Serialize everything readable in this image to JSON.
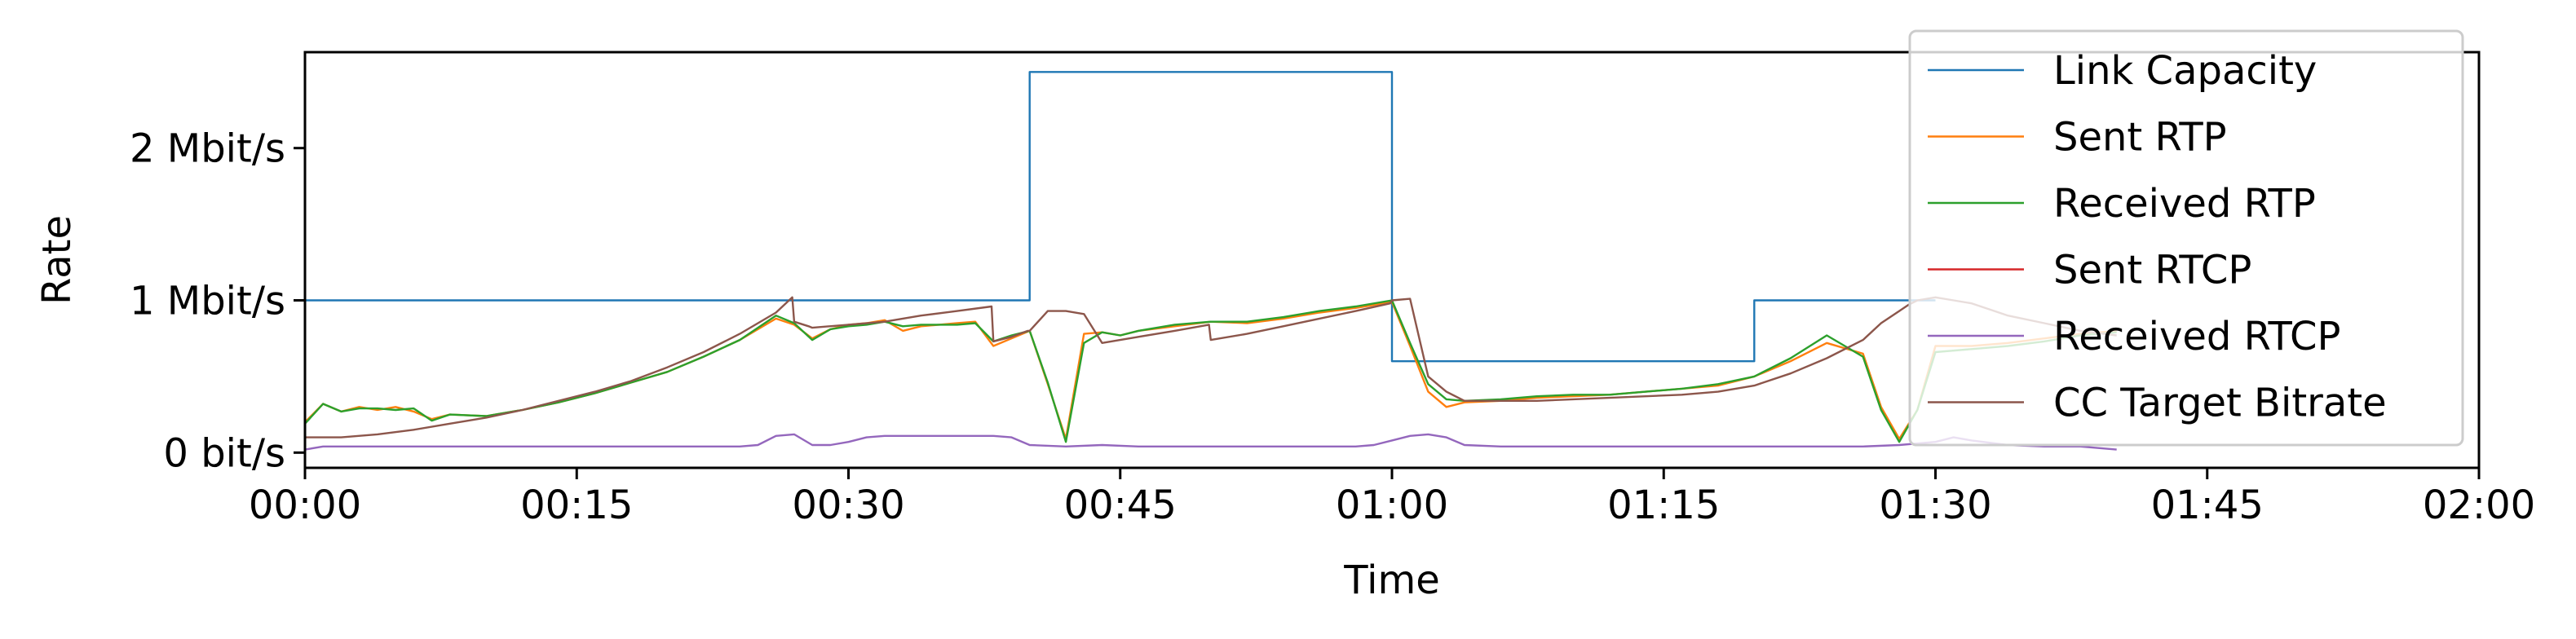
{
  "chart_data": {
    "type": "line",
    "xlabel": "Time",
    "ylabel": "Rate",
    "xlim": [
      0,
      120
    ],
    "ylim": [
      -0.1,
      2.63
    ],
    "x_unit": "seconds of recording, shown as mm:ss",
    "y_unit": "Mbit/s",
    "x_ticks": [
      {
        "value": 0,
        "label": "00:00"
      },
      {
        "value": 15,
        "label": "00:15"
      },
      {
        "value": 30,
        "label": "00:30"
      },
      {
        "value": 45,
        "label": "00:45"
      },
      {
        "value": 60,
        "label": "01:00"
      },
      {
        "value": 75,
        "label": "01:15"
      },
      {
        "value": 90,
        "label": "01:30"
      },
      {
        "value": 105,
        "label": "01:45"
      },
      {
        "value": 120,
        "label": "02:00"
      }
    ],
    "y_ticks": [
      {
        "value": 0,
        "label": "0 bit/s"
      },
      {
        "value": 1,
        "label": "1 Mbit/s"
      },
      {
        "value": 2,
        "label": "2 Mbit/s"
      }
    ],
    "grid": false,
    "legend_position": "top-right",
    "series": [
      {
        "name": "Link Capacity",
        "color": "#1f77b4",
        "step": true,
        "x": [
          0,
          40,
          40,
          60,
          60,
          80,
          80,
          90
        ],
        "y": [
          1.0,
          1.0,
          2.5,
          2.5,
          0.6,
          0.6,
          1.0,
          1.0
        ]
      },
      {
        "name": "Sent RTP",
        "color": "#ff7f0e",
        "x": [
          0,
          1,
          2,
          3,
          4,
          5,
          6,
          7,
          8,
          10,
          12,
          14,
          16,
          18,
          20,
          22,
          24,
          26,
          27,
          28,
          29,
          30,
          31,
          32,
          33,
          34,
          35,
          36,
          37,
          38,
          39,
          40,
          41,
          42,
          43,
          44,
          45,
          46,
          48,
          50,
          52,
          54,
          56,
          58,
          60,
          61,
          62,
          63,
          64,
          66,
          68,
          70,
          72,
          74,
          76,
          78,
          80,
          82,
          84,
          86,
          87,
          88,
          89,
          90,
          92,
          94,
          96,
          98,
          100
        ],
        "y": [
          0.2,
          0.32,
          0.27,
          0.3,
          0.28,
          0.3,
          0.27,
          0.22,
          0.25,
          0.24,
          0.28,
          0.33,
          0.39,
          0.46,
          0.53,
          0.63,
          0.74,
          0.88,
          0.84,
          0.75,
          0.81,
          0.84,
          0.85,
          0.87,
          0.8,
          0.83,
          0.84,
          0.85,
          0.86,
          0.7,
          0.75,
          0.8,
          0.45,
          0.09,
          0.78,
          0.79,
          0.77,
          0.8,
          0.83,
          0.86,
          0.85,
          0.88,
          0.92,
          0.95,
          0.99,
          0.7,
          0.4,
          0.3,
          0.33,
          0.34,
          0.36,
          0.37,
          0.38,
          0.4,
          0.42,
          0.44,
          0.5,
          0.6,
          0.72,
          0.65,
          0.3,
          0.09,
          0.28,
          0.7,
          0.7,
          0.72,
          0.75,
          0.78,
          0.8
        ]
      },
      {
        "name": "Received RTP",
        "color": "#2ca02c",
        "x": [
          0,
          1,
          2,
          3,
          4,
          5,
          6,
          7,
          8,
          10,
          12,
          14,
          16,
          18,
          20,
          22,
          24,
          26,
          27,
          28,
          29,
          30,
          31,
          32,
          33,
          34,
          35,
          36,
          37,
          38,
          39,
          40,
          41,
          42,
          43,
          44,
          45,
          46,
          48,
          50,
          52,
          54,
          56,
          58,
          60,
          61,
          62,
          63,
          64,
          66,
          68,
          70,
          72,
          74,
          76,
          78,
          80,
          82,
          84,
          86,
          87,
          88,
          89,
          90,
          92,
          94,
          96,
          98,
          100
        ],
        "y": [
          0.19,
          0.32,
          0.27,
          0.29,
          0.29,
          0.28,
          0.29,
          0.21,
          0.25,
          0.24,
          0.28,
          0.33,
          0.39,
          0.46,
          0.53,
          0.63,
          0.74,
          0.9,
          0.85,
          0.74,
          0.81,
          0.83,
          0.84,
          0.86,
          0.83,
          0.84,
          0.84,
          0.84,
          0.85,
          0.73,
          0.77,
          0.8,
          0.46,
          0.07,
          0.72,
          0.79,
          0.77,
          0.8,
          0.84,
          0.86,
          0.86,
          0.89,
          0.93,
          0.96,
          1.0,
          0.72,
          0.45,
          0.35,
          0.34,
          0.35,
          0.37,
          0.38,
          0.38,
          0.4,
          0.42,
          0.45,
          0.5,
          0.62,
          0.77,
          0.63,
          0.28,
          0.07,
          0.28,
          0.66,
          0.68,
          0.7,
          0.73,
          0.77,
          0.79
        ]
      },
      {
        "name": "Sent RTCP",
        "color": "#d62728",
        "x": [],
        "y": []
      },
      {
        "name": "Received RTCP",
        "color": "#9467bd",
        "x": [
          0,
          1,
          2,
          4,
          6,
          8,
          10,
          12,
          14,
          16,
          18,
          20,
          22,
          24,
          25,
          26,
          27,
          28,
          29,
          30,
          31,
          32,
          34,
          36,
          38,
          39,
          40,
          42,
          44,
          46,
          48,
          50,
          52,
          54,
          56,
          58,
          59,
          60,
          61,
          62,
          63,
          64,
          66,
          68,
          70,
          72,
          74,
          76,
          78,
          80,
          82,
          84,
          86,
          88,
          90,
          91,
          92,
          94,
          96,
          98,
          100
        ],
        "y": [
          0.02,
          0.04,
          0.04,
          0.04,
          0.04,
          0.04,
          0.04,
          0.04,
          0.04,
          0.04,
          0.04,
          0.04,
          0.04,
          0.04,
          0.05,
          0.11,
          0.12,
          0.05,
          0.05,
          0.07,
          0.1,
          0.11,
          0.11,
          0.11,
          0.11,
          0.1,
          0.05,
          0.04,
          0.05,
          0.04,
          0.04,
          0.04,
          0.04,
          0.04,
          0.04,
          0.04,
          0.05,
          0.08,
          0.11,
          0.12,
          0.1,
          0.05,
          0.04,
          0.04,
          0.04,
          0.04,
          0.04,
          0.04,
          0.04,
          0.04,
          0.04,
          0.04,
          0.04,
          0.05,
          0.07,
          0.1,
          0.08,
          0.05,
          0.04,
          0.04,
          0.02
        ]
      },
      {
        "name": "CC Target Bitrate",
        "color": "#8c564b",
        "x": [
          0,
          1,
          2,
          4,
          6,
          8,
          10,
          12,
          14,
          16,
          18,
          20,
          22,
          24,
          26,
          26.9,
          27,
          27.8,
          28,
          30,
          32,
          34,
          36,
          37.9,
          38,
          39,
          39.9,
          40,
          41,
          42,
          43,
          44,
          46,
          48,
          49.9,
          50,
          52,
          54,
          56,
          58,
          59.9,
          60,
          61,
          62,
          63,
          64,
          66,
          68,
          70,
          72,
          74,
          76,
          78,
          80,
          82,
          84,
          86,
          87,
          88,
          88.5,
          89,
          90,
          91,
          92,
          94,
          96,
          98,
          100
        ],
        "y": [
          0.1,
          0.1,
          0.1,
          0.12,
          0.15,
          0.19,
          0.23,
          0.28,
          0.34,
          0.4,
          0.47,
          0.56,
          0.66,
          0.78,
          0.92,
          1.02,
          0.86,
          0.83,
          0.82,
          0.84,
          0.86,
          0.9,
          0.93,
          0.96,
          0.73,
          0.76,
          0.8,
          0.8,
          0.93,
          0.93,
          0.91,
          0.72,
          0.76,
          0.8,
          0.84,
          0.74,
          0.78,
          0.83,
          0.88,
          0.93,
          0.98,
          1.0,
          1.01,
          0.5,
          0.4,
          0.34,
          0.34,
          0.34,
          0.35,
          0.36,
          0.37,
          0.38,
          0.4,
          0.44,
          0.52,
          0.62,
          0.74,
          0.85,
          0.93,
          0.97,
          1.0,
          1.02,
          1.0,
          0.98,
          0.9,
          0.85,
          0.8,
          0.77
        ]
      }
    ]
  }
}
